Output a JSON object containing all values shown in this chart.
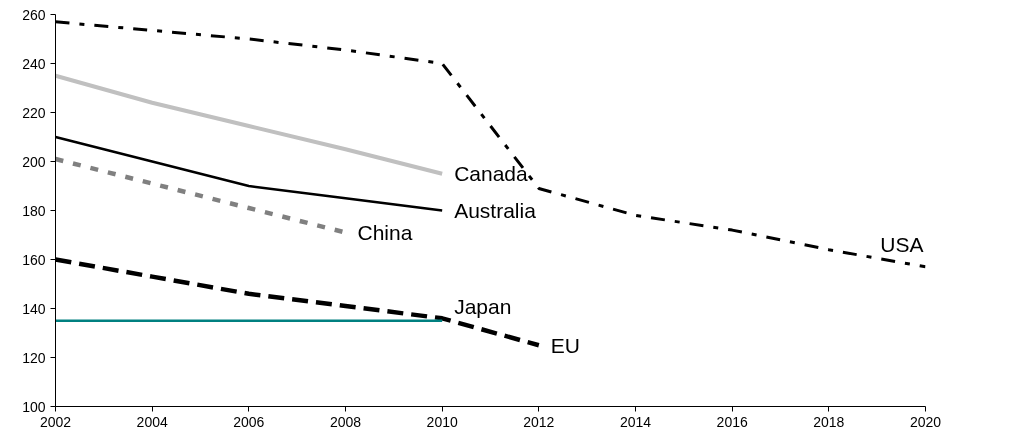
{
  "chart_data": {
    "type": "line",
    "xlim": [
      2002,
      2020
    ],
    "xticks": [
      2002,
      2004,
      2006,
      2008,
      2010,
      2012,
      2014,
      2016,
      2018,
      2020
    ],
    "ylim": [
      100,
      260
    ],
    "yticks": [
      100,
      120,
      140,
      160,
      180,
      200,
      220,
      240,
      260
    ],
    "grid": false,
    "marker": "none",
    "series": [
      {
        "name": "USA",
        "color": "#000000",
        "line_style": "dashdot",
        "x": [
          2002,
          2004,
          2006,
          2008,
          2010,
          2012,
          2014,
          2016,
          2018,
          2020
        ],
        "values": [
          257,
          253.5,
          250,
          245.5,
          240,
          189,
          178,
          172,
          164,
          157
        ]
      },
      {
        "name": "Canada",
        "color": "#c0c0c0",
        "line_style": "solid",
        "x": [
          2002,
          2004,
          2006,
          2008,
          2010
        ],
        "values": [
          235,
          224,
          214.5,
          205,
          195
        ]
      },
      {
        "name": "Australia",
        "color": "#000000",
        "line_style": "solid",
        "x": [
          2002,
          2004,
          2006,
          2008,
          2010
        ],
        "values": [
          210,
          200,
          190,
          185,
          180
        ]
      },
      {
        "name": "China",
        "color": "#808080",
        "line_style": "dotted",
        "x": [
          2002,
          2004,
          2006,
          2008
        ],
        "values": [
          201,
          191,
          181,
          171
        ]
      },
      {
        "name": "EU",
        "color": "#000000",
        "line_style": "dashed",
        "x": [
          2002,
          2004,
          2006,
          2008,
          2010,
          2012
        ],
        "values": [
          160,
          153,
          146,
          141,
          136,
          125
        ]
      },
      {
        "name": "Japan",
        "color": "#008080",
        "line_style": "solid",
        "x": [
          2002,
          2010
        ],
        "values": [
          135,
          135
        ]
      }
    ]
  }
}
